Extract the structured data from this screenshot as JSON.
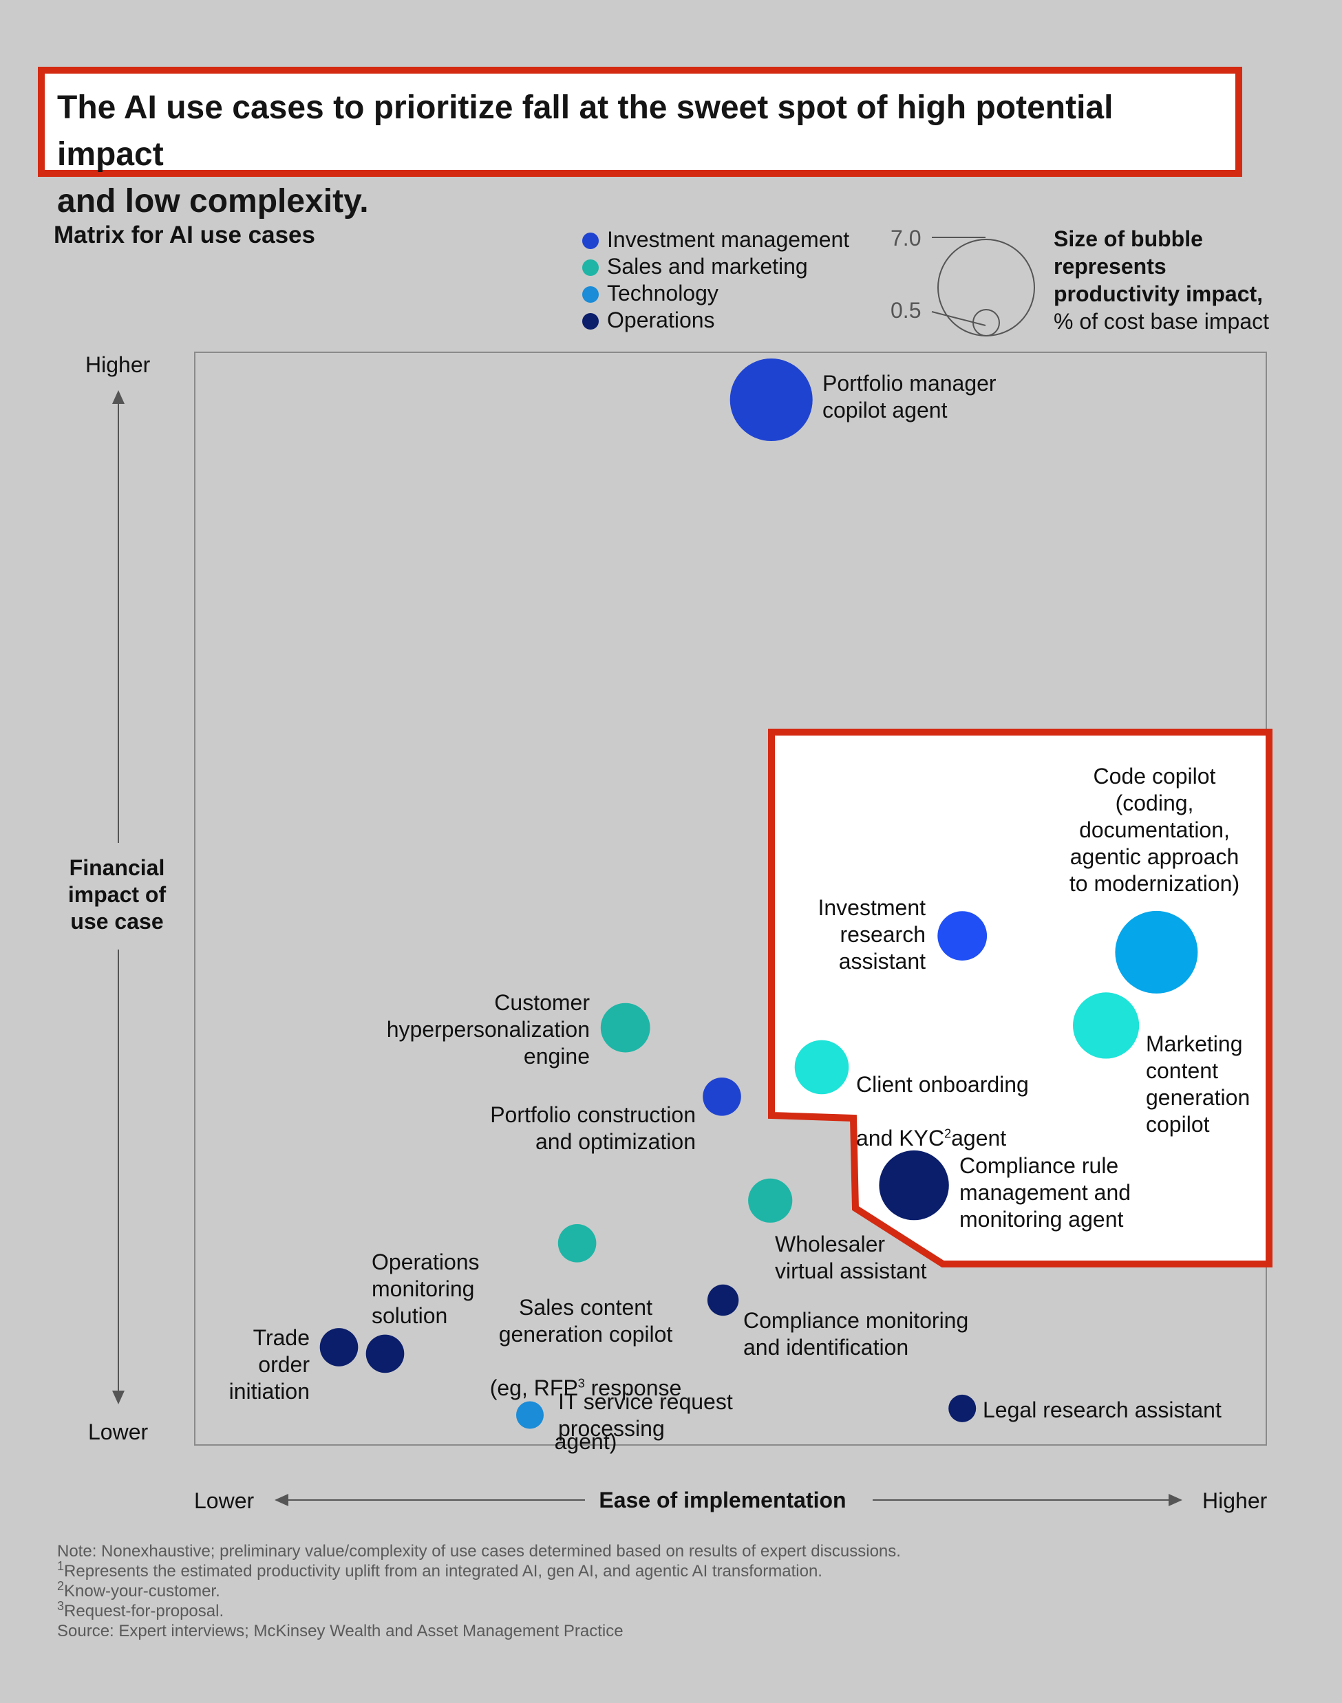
{
  "title": "The AI use cases to prioritize fall at the sweet spot of high potential impact\nand low complexity.",
  "subtitle": "Matrix for AI use cases",
  "legend": [
    {
      "name": "Investment management",
      "color": "#1f43d1"
    },
    {
      "name": "Sales and marketing",
      "color": "#1eb5a6"
    },
    {
      "name": "Technology",
      "color": "#1a8cd8"
    },
    {
      "name": "Operations",
      "color": "#0b1e6b"
    }
  ],
  "size_legend": {
    "max_label": "7.0",
    "min_label": "0.5",
    "title": "Size of bubble represents productivity impact,",
    "subtitle": "% of cost base impact"
  },
  "axes": {
    "y_title": "Financial impact of use case",
    "y_high": "Higher",
    "y_low": "Lower",
    "x_title": "Ease of implementation",
    "x_low": "Lower",
    "x_high": "Higher"
  },
  "chart_data": {
    "type": "scatter",
    "title": "Matrix for AI use cases",
    "xlabel": "Ease of implementation",
    "ylabel": "Financial impact of use case",
    "xlim": [
      0,
      100
    ],
    "ylim": [
      0,
      100
    ],
    "grid": false,
    "legend_placement": "top",
    "points": [
      {
        "label": "Portfolio manager copilot agent",
        "category": "Investment management",
        "x": 53.8,
        "y": 95.6,
        "size": 7.0,
        "color": "#1f43d1"
      },
      {
        "label": "Investment research assistant",
        "category": "Investment management",
        "x": 71.6,
        "y": 46.6,
        "size": 2.5,
        "color": "#1f4ff5"
      },
      {
        "label": "Code copilot (coding, documentation, agentic approach to modernization)",
        "category": "Technology",
        "x": 89.7,
        "y": 45.1,
        "size": 7.0,
        "color": "#05a6ea"
      },
      {
        "label": "Marketing content generation copilot",
        "category": "Sales and marketing",
        "x": 85.0,
        "y": 38.4,
        "size": 4.5,
        "color": "#1ee3d8"
      },
      {
        "label": "Client onboarding and KYC agent",
        "category": "Sales and marketing",
        "x": 58.5,
        "y": 34.6,
        "size": 3.0,
        "color": "#1ee3d8"
      },
      {
        "label": "Customer hyperpersonalization engine",
        "category": "Sales and marketing",
        "x": 40.2,
        "y": 38.2,
        "size": 2.5,
        "color": "#1eb5a6"
      },
      {
        "label": "Portfolio construction and optimization",
        "category": "Investment management",
        "x": 49.2,
        "y": 31.9,
        "size": 1.5,
        "color": "#1f43d1"
      },
      {
        "label": "Compliance rule management and monitoring agent",
        "category": "Operations",
        "x": 67.1,
        "y": 23.8,
        "size": 5.0,
        "color": "#0b1e6b"
      },
      {
        "label": "Wholesaler virtual assistant",
        "category": "Sales and marketing",
        "x": 53.7,
        "y": 22.4,
        "size": 2.0,
        "color": "#1eb5a6"
      },
      {
        "label": "Sales content generation copilot (eg, RFP response agent)",
        "category": "Sales and marketing",
        "x": 35.7,
        "y": 18.5,
        "size": 1.5,
        "color": "#1eb5a6"
      },
      {
        "label": "Compliance monitoring and identification",
        "category": "Operations",
        "x": 49.3,
        "y": 13.3,
        "size": 1.0,
        "color": "#0b1e6b"
      },
      {
        "label": "Trade order initiation",
        "category": "Operations",
        "x": 13.5,
        "y": 9.0,
        "size": 1.5,
        "color": "#0b1e6b"
      },
      {
        "label": "Operations monitoring solution",
        "category": "Operations",
        "x": 17.8,
        "y": 8.4,
        "size": 1.5,
        "color": "#0b1e6b"
      },
      {
        "label": "IT service request processing",
        "category": "Technology",
        "x": 31.3,
        "y": 2.8,
        "size": 0.5,
        "color": "#1a8cd8"
      },
      {
        "label": "Legal research assistant",
        "category": "Operations",
        "x": 71.6,
        "y": 3.4,
        "size": 0.5,
        "color": "#0b1e6b"
      }
    ]
  },
  "labels": {
    "pm_copilot": "Portfolio manager\ncopilot agent",
    "inv_research": "Investment\nresearch\nassistant",
    "code_copilot": "Code copilot\n(coding,\ndocumentation,\nagentic approach\nto modernization)",
    "marketing": "Marketing\ncontent\ngeneration\ncopilot",
    "client_onboarding_1": "Client onboarding",
    "client_onboarding_2a": "and KYC",
    "client_onboarding_sup": "2",
    "client_onboarding_2b": "agent",
    "customer_hyper": "Customer\nhyperpersonalization\nengine",
    "portfolio_construction": "Portfolio construction\nand optimization",
    "compliance_rule": "Compliance rule\nmanagement and\nmonitoring agent",
    "wholesaler": "Wholesaler\nvirtual assistant",
    "sales_content_1": "Sales content\ngeneration copilot",
    "sales_content_2a": "(eg, RFP",
    "sales_content_sup": "3",
    "sales_content_2b": " response",
    "sales_content_3": "agent)",
    "compliance_monitoring": "Compliance monitoring\nand identification",
    "trade_order": "Trade order\ninitiation",
    "ops_monitoring": "Operations\nmonitoring\nsolution",
    "it_service": "IT service request\nprocessing",
    "legal_research": "Legal research assistant"
  },
  "notes": {
    "note": "Note: Nonexhaustive; preliminary value/complexity of use cases determined based on results of expert discussions.",
    "fn1_num": "1",
    "fn1": "Represents the estimated productivity uplift from an integrated AI, gen AI, and agentic AI transformation.",
    "fn2_num": "2",
    "fn2": "Know-your-customer.",
    "fn3_num": "3",
    "fn3": "Request-for-proposal.",
    "source": "Source: Expert interviews; McKinsey Wealth and Asset Management Practice"
  },
  "highlight_color": "#d42a12"
}
